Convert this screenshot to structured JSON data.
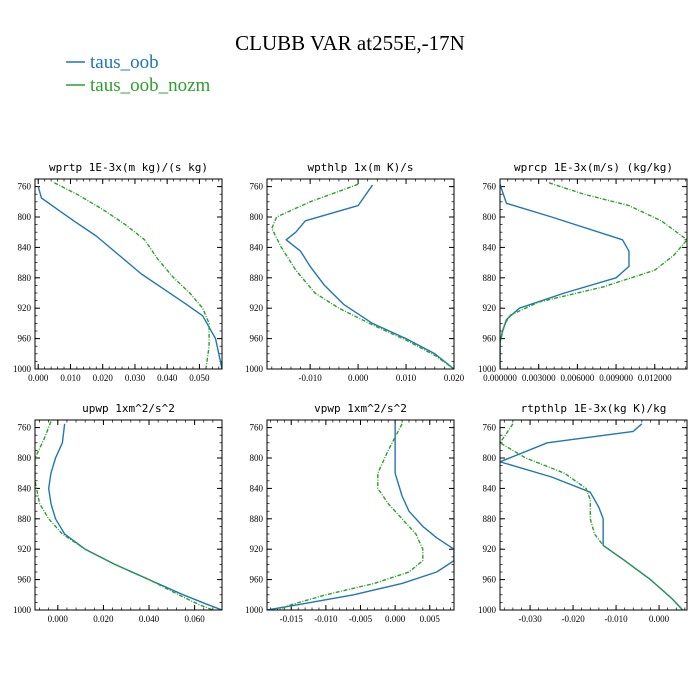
{
  "figure": {
    "title": "CLUBB VAR at255E,-17N"
  },
  "legend": [
    {
      "name": "taus_oob",
      "color": "#1f77b4"
    },
    {
      "name": "taus_oob_nozm",
      "color": "#2ca02c"
    }
  ],
  "chart_data": [
    {
      "type": "line",
      "title": "wprtp  1E-3x(m kg)/(s kg)",
      "xlim": [
        -0.001,
        0.057
      ],
      "ylim": [
        1000,
        750
      ],
      "y_inverted": true,
      "xticks": [
        0.0,
        0.01,
        0.02,
        0.03,
        0.04,
        0.05
      ],
      "xtick_labels": [
        "0.000",
        "0.010",
        "0.020",
        "0.030",
        "0.040",
        "0.050"
      ],
      "yticks": [
        760,
        800,
        840,
        880,
        920,
        960,
        1000
      ],
      "ytick_labels": [
        "760",
        "800",
        "840",
        "880",
        "920",
        "960",
        "1000"
      ],
      "series": [
        {
          "name": "taus_oob",
          "color": "#1f77b4",
          "dash": "solid",
          "x": [
            0.0,
            0.001,
            0.006,
            0.011,
            0.018,
            0.025,
            0.032,
            0.039,
            0.046,
            0.051,
            0.053,
            0.055,
            0.056,
            0.057
          ],
          "y": [
            760,
            775,
            790,
            805,
            825,
            850,
            875,
            895,
            915,
            930,
            945,
            960,
            980,
            1000
          ]
        },
        {
          "name": "taus_oob_nozm",
          "color": "#2ca02c",
          "dash": "dashed",
          "x": [
            0.005,
            0.012,
            0.02,
            0.027,
            0.033,
            0.037,
            0.042,
            0.047,
            0.051,
            0.053,
            0.053,
            0.052
          ],
          "y": [
            755,
            770,
            790,
            810,
            830,
            855,
            880,
            900,
            920,
            940,
            970,
            1000
          ]
        }
      ]
    },
    {
      "type": "line",
      "title": "wpthlp  1x(m K)/s",
      "xlim": [
        -0.019,
        0.02
      ],
      "ylim": [
        1000,
        750
      ],
      "y_inverted": true,
      "xticks": [
        -0.01,
        0.0,
        0.01,
        0.02
      ],
      "xtick_labels": [
        "-0.010",
        "0.000",
        "0.010",
        "0.020"
      ],
      "yticks": [
        760,
        800,
        840,
        880,
        920,
        960,
        1000
      ],
      "ytick_labels": [
        "760",
        "800",
        "840",
        "880",
        "920",
        "960",
        "1000"
      ],
      "series": [
        {
          "name": "taus_oob",
          "color": "#1f77b4",
          "dash": "solid",
          "x": [
            0.003,
            0.0,
            -0.011,
            -0.013,
            -0.015,
            -0.012,
            -0.01,
            -0.007,
            -0.003,
            0.003,
            0.01,
            0.016,
            0.02
          ],
          "y": [
            758,
            785,
            805,
            820,
            830,
            845,
            865,
            890,
            915,
            940,
            960,
            980,
            1000
          ]
        },
        {
          "name": "taus_oob_nozm",
          "color": "#2ca02c",
          "dash": "dashed",
          "x": [
            0.0,
            -0.01,
            -0.017,
            -0.018,
            -0.016,
            -0.013,
            -0.009,
            -0.004,
            0.003,
            0.01,
            0.016,
            0.02
          ],
          "y": [
            757,
            780,
            800,
            815,
            840,
            870,
            900,
            920,
            942,
            962,
            982,
            1000
          ]
        }
      ]
    },
    {
      "type": "line",
      "title": "wprcp  1E-3x(m/s) (kg/kg)",
      "xlim": [
        0.0,
        0.0145
      ],
      "ylim": [
        1000,
        750
      ],
      "y_inverted": true,
      "xticks": [
        0.0,
        0.003,
        0.006,
        0.009,
        0.012
      ],
      "xtick_labels": [
        "0.000000",
        "0.003000",
        "0.006000",
        "0.009000",
        "0.012000"
      ],
      "yticks": [
        760,
        800,
        840,
        880,
        920,
        960,
        1000
      ],
      "ytick_labels": [
        "760",
        "800",
        "840",
        "880",
        "920",
        "960",
        "1000"
      ],
      "series": [
        {
          "name": "taus_oob",
          "color": "#1f77b4",
          "dash": "solid",
          "x": [
            0.0,
            0.0005,
            0.004,
            0.0095,
            0.01,
            0.01,
            0.009,
            0.005,
            0.0015,
            0.0005,
            0.0002,
            0.0,
            0.0
          ],
          "y": [
            757,
            782,
            800,
            830,
            845,
            865,
            880,
            900,
            920,
            935,
            950,
            965,
            1000
          ]
        },
        {
          "name": "taus_oob_nozm",
          "color": "#2ca02c",
          "dash": "dashed",
          "x": [
            0.0038,
            0.0065,
            0.01,
            0.0125,
            0.0145,
            0.0135,
            0.012,
            0.008,
            0.003,
            0.0007,
            0.0003,
            0.0,
            0.0
          ],
          "y": [
            755,
            770,
            785,
            805,
            830,
            850,
            870,
            892,
            912,
            930,
            945,
            965,
            1000
          ]
        }
      ]
    },
    {
      "type": "line",
      "title": "upwp  1xm^2/s^2",
      "xlim": [
        -0.01,
        0.072
      ],
      "ylim": [
        1000,
        750
      ],
      "y_inverted": true,
      "xticks": [
        0.0,
        0.02,
        0.04,
        0.06
      ],
      "xtick_labels": [
        "0.000",
        "0.020",
        "0.040",
        "0.060"
      ],
      "yticks": [
        760,
        800,
        840,
        880,
        920,
        960,
        1000
      ],
      "ytick_labels": [
        "760",
        "800",
        "840",
        "880",
        "920",
        "960",
        "1000"
      ],
      "series": [
        {
          "name": "taus_oob",
          "color": "#1f77b4",
          "dash": "solid",
          "x": [
            0.003,
            0.002,
            -0.001,
            -0.003,
            -0.004,
            -0.003,
            -0.001,
            0.003,
            0.012,
            0.025,
            0.04,
            0.055,
            0.065,
            0.072
          ],
          "y": [
            755,
            780,
            800,
            820,
            840,
            860,
            880,
            900,
            920,
            940,
            960,
            980,
            992,
            1000
          ]
        },
        {
          "name": "taus_oob_nozm",
          "color": "#2ca02c",
          "dash": "dashed",
          "x": [
            -0.003,
            -0.006,
            -0.01,
            -0.01,
            -0.008,
            -0.004,
            0.002,
            0.012,
            0.025,
            0.04,
            0.053,
            0.062,
            0.068
          ],
          "y": [
            752,
            775,
            800,
            830,
            860,
            880,
            900,
            920,
            940,
            960,
            980,
            993,
            1000
          ]
        }
      ]
    },
    {
      "type": "line",
      "title": "vpwp  1xm^2/s^2",
      "xlim": [
        -0.0185,
        0.0085
      ],
      "ylim": [
        1000,
        750
      ],
      "y_inverted": true,
      "xticks": [
        -0.015,
        -0.01,
        -0.005,
        0.0,
        0.005
      ],
      "xtick_labels": [
        "-0.015",
        "-0.010",
        "-0.005",
        "0.000",
        "0.005"
      ],
      "yticks": [
        760,
        800,
        840,
        880,
        920,
        960,
        1000
      ],
      "ytick_labels": [
        "760",
        "800",
        "840",
        "880",
        "920",
        "960",
        "1000"
      ],
      "series": [
        {
          "name": "taus_oob",
          "color": "#1f77b4",
          "dash": "solid",
          "x": [
            0.0,
            0.0,
            0.0,
            0.001,
            0.002,
            0.004,
            0.006,
            0.0085,
            0.0085,
            0.006,
            0.001,
            -0.006,
            -0.014,
            -0.0185
          ],
          "y": [
            755,
            790,
            820,
            850,
            870,
            890,
            905,
            920,
            935,
            950,
            965,
            980,
            993,
            1000
          ]
        },
        {
          "name": "taus_oob_nozm",
          "color": "#2ca02c",
          "dash": "dashed",
          "x": [
            0.001,
            -0.001,
            -0.0025,
            -0.0025,
            -0.001,
            0.001,
            0.003,
            0.004,
            0.004,
            0.002,
            -0.003,
            -0.01,
            -0.015,
            -0.017
          ],
          "y": [
            755,
            790,
            820,
            840,
            860,
            880,
            900,
            920,
            935,
            950,
            965,
            980,
            993,
            1000
          ]
        }
      ]
    },
    {
      "type": "line",
      "title": "rtpthlp  1E-3x(kg K)/kg",
      "xlim": [
        -0.037,
        0.0065
      ],
      "ylim": [
        1000,
        750
      ],
      "y_inverted": true,
      "xticks": [
        -0.03,
        -0.02,
        -0.01,
        0.0
      ],
      "xtick_labels": [
        "-0.030",
        "-0.020",
        "-0.010",
        "0.000"
      ],
      "yticks": [
        760,
        800,
        840,
        880,
        920,
        960,
        1000
      ],
      "ytick_labels": [
        "760",
        "800",
        "840",
        "880",
        "920",
        "960",
        "1000"
      ],
      "series": [
        {
          "name": "taus_oob",
          "color": "#1f77b4",
          "dash": "solid",
          "x": [
            -0.004,
            -0.006,
            -0.026,
            -0.037,
            -0.025,
            -0.016,
            -0.014,
            -0.013,
            -0.013,
            -0.013,
            -0.008,
            -0.002,
            0.003,
            0.0055
          ],
          "y": [
            755,
            765,
            780,
            805,
            825,
            845,
            865,
            880,
            900,
            915,
            935,
            960,
            985,
            1000
          ]
        },
        {
          "name": "taus_oob_nozm",
          "color": "#2ca02c",
          "dash": "dashed",
          "x": [
            -0.034,
            -0.037,
            -0.031,
            -0.022,
            -0.017,
            -0.016,
            -0.016,
            -0.015,
            -0.013,
            -0.008,
            -0.002,
            0.003,
            0.0055
          ],
          "y": [
            755,
            780,
            800,
            820,
            840,
            855,
            880,
            900,
            915,
            935,
            960,
            985,
            1000
          ]
        }
      ]
    }
  ]
}
